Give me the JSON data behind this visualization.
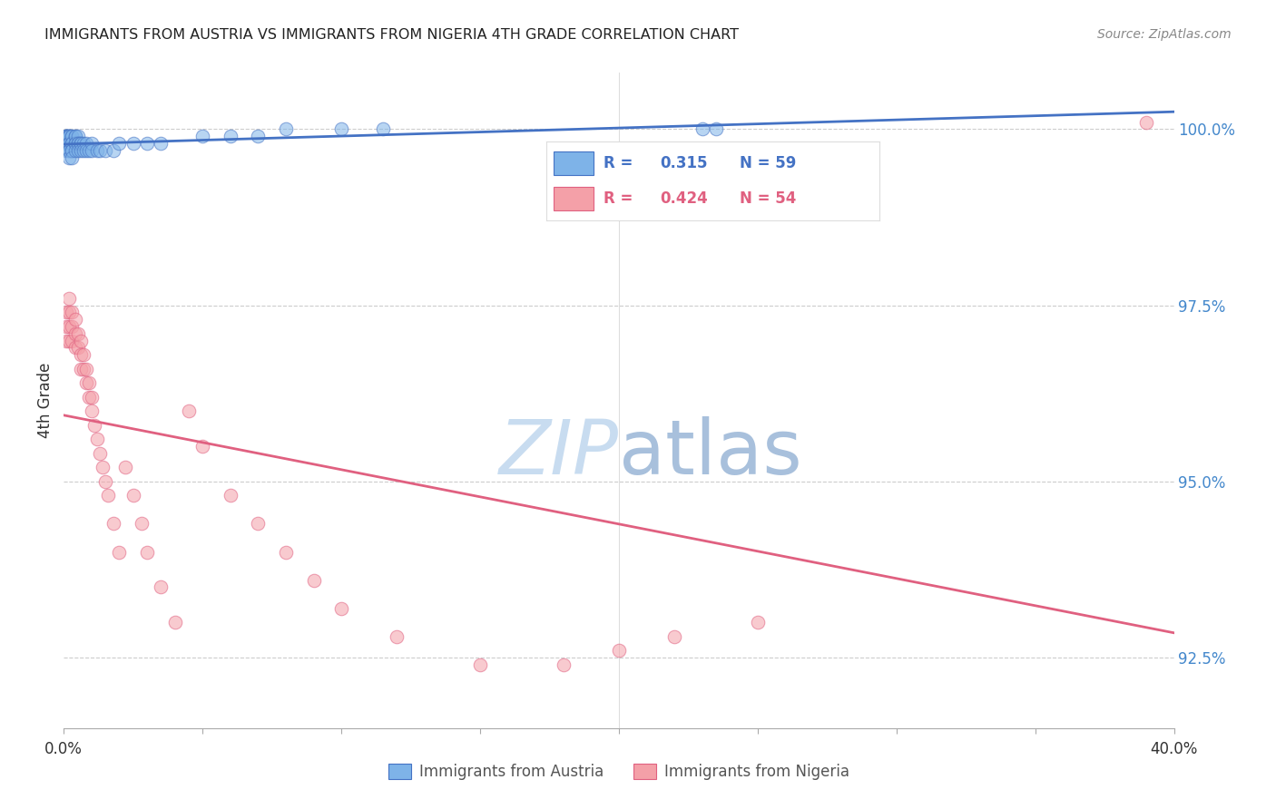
{
  "title": "IMMIGRANTS FROM AUSTRIA VS IMMIGRANTS FROM NIGERIA 4TH GRADE CORRELATION CHART",
  "source": "Source: ZipAtlas.com",
  "ylabel": "4th Grade",
  "ylabel_right_ticks": [
    "100.0%",
    "97.5%",
    "95.0%",
    "92.5%"
  ],
  "ylabel_right_vals": [
    1.0,
    0.975,
    0.95,
    0.925
  ],
  "legend_blue": {
    "R": "0.315",
    "N": "59",
    "label": "Immigrants from Austria"
  },
  "legend_pink": {
    "R": "0.424",
    "N": "54",
    "label": "Immigrants from Nigeria"
  },
  "blue_scatter_color": "#7EB3E8",
  "pink_scatter_color": "#F4A0A8",
  "blue_line_color": "#4472C4",
  "pink_line_color": "#E06080",
  "background_color": "#FFFFFF",
  "xmin": 0.0,
  "xmax": 0.4,
  "ymin": 0.915,
  "ymax": 1.008,
  "austria_x": [
    0.001,
    0.001,
    0.001,
    0.001,
    0.001,
    0.001,
    0.001,
    0.001,
    0.002,
    0.002,
    0.002,
    0.002,
    0.002,
    0.002,
    0.002,
    0.002,
    0.002,
    0.003,
    0.003,
    0.003,
    0.003,
    0.003,
    0.003,
    0.003,
    0.004,
    0.004,
    0.004,
    0.004,
    0.004,
    0.005,
    0.005,
    0.005,
    0.005,
    0.006,
    0.006,
    0.006,
    0.007,
    0.007,
    0.008,
    0.008,
    0.009,
    0.01,
    0.01,
    0.012,
    0.013,
    0.015,
    0.018,
    0.02,
    0.025,
    0.03,
    0.035,
    0.05,
    0.06,
    0.07,
    0.08,
    0.1,
    0.115,
    0.23,
    0.235
  ],
  "austria_y": [
    0.999,
    0.999,
    0.999,
    0.999,
    0.999,
    0.998,
    0.998,
    0.997,
    0.999,
    0.999,
    0.999,
    0.999,
    0.998,
    0.998,
    0.997,
    0.997,
    0.996,
    0.999,
    0.999,
    0.998,
    0.998,
    0.997,
    0.997,
    0.996,
    0.999,
    0.999,
    0.998,
    0.998,
    0.997,
    0.999,
    0.998,
    0.998,
    0.997,
    0.998,
    0.998,
    0.997,
    0.998,
    0.997,
    0.998,
    0.997,
    0.997,
    0.998,
    0.997,
    0.997,
    0.997,
    0.997,
    0.997,
    0.998,
    0.998,
    0.998,
    0.998,
    0.999,
    0.999,
    0.999,
    1.0,
    1.0,
    1.0,
    1.0,
    1.0
  ],
  "nigeria_x": [
    0.001,
    0.001,
    0.001,
    0.002,
    0.002,
    0.002,
    0.002,
    0.003,
    0.003,
    0.003,
    0.004,
    0.004,
    0.004,
    0.005,
    0.005,
    0.006,
    0.006,
    0.006,
    0.007,
    0.007,
    0.008,
    0.008,
    0.009,
    0.009,
    0.01,
    0.01,
    0.011,
    0.012,
    0.013,
    0.014,
    0.015,
    0.016,
    0.018,
    0.02,
    0.022,
    0.025,
    0.028,
    0.03,
    0.035,
    0.04,
    0.045,
    0.05,
    0.06,
    0.07,
    0.08,
    0.09,
    0.1,
    0.12,
    0.15,
    0.18,
    0.2,
    0.22,
    0.25,
    0.39
  ],
  "nigeria_y": [
    0.974,
    0.972,
    0.97,
    0.976,
    0.974,
    0.972,
    0.97,
    0.974,
    0.972,
    0.97,
    0.973,
    0.971,
    0.969,
    0.971,
    0.969,
    0.97,
    0.968,
    0.966,
    0.968,
    0.966,
    0.966,
    0.964,
    0.964,
    0.962,
    0.962,
    0.96,
    0.958,
    0.956,
    0.954,
    0.952,
    0.95,
    0.948,
    0.944,
    0.94,
    0.952,
    0.948,
    0.944,
    0.94,
    0.935,
    0.93,
    0.96,
    0.955,
    0.948,
    0.944,
    0.94,
    0.936,
    0.932,
    0.928,
    0.924,
    0.924,
    0.926,
    0.928,
    0.93,
    1.001
  ]
}
